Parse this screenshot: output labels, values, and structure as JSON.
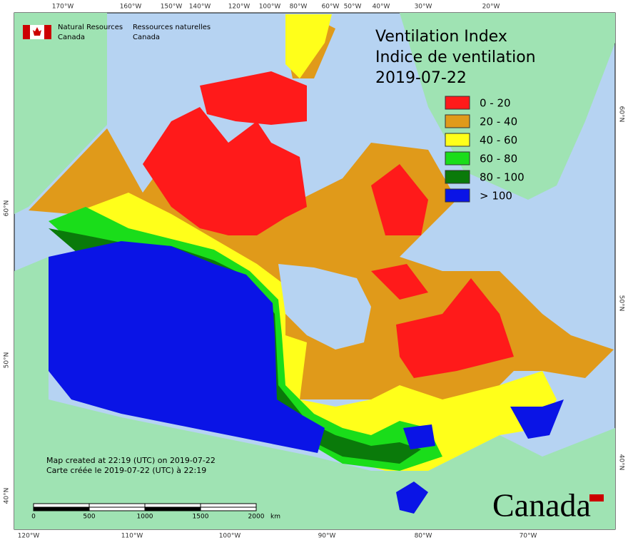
{
  "header": {
    "agency_en": [
      "Natural Resources",
      "Canada"
    ],
    "agency_fr": [
      "Ressources naturelles",
      "Canada"
    ]
  },
  "title": [
    "Ventilation Index",
    "Indice de ventilation",
    "2019-07-22"
  ],
  "legend": [
    {
      "label": "0 - 20",
      "color": "#ff1a1a"
    },
    {
      "label": "20 - 40",
      "color": "#e09a1a"
    },
    {
      "label": "40 - 60",
      "color": "#ffff1a"
    },
    {
      "label": "60 - 80",
      "color": "#1add1a"
    },
    {
      "label": "80 - 100",
      "color": "#0a7a0a"
    },
    {
      "label": "> 100",
      "color": "#0a14e6"
    }
  ],
  "graticule": {
    "top": [
      "170°W",
      "160°W",
      "150°W",
      "140°W",
      "120°W",
      "100°W",
      "80°W",
      "60°W",
      "50°W",
      "40°W",
      "30°W",
      "20°W"
    ],
    "bottom": [
      "120°W",
      "110°W",
      "100°W",
      "90°W",
      "80°W",
      "70°W"
    ],
    "left": [
      "60°N",
      "50°N",
      "40°N"
    ],
    "right": [
      "60°N",
      "50°N",
      "40°N"
    ]
  },
  "notes": [
    "Map created at 22:19 (UTC) on 2019-07-22",
    "Carte créée le 2019-07-22 (UTC) à 22:19"
  ],
  "scale_bar": {
    "ticks": [
      0,
      500,
      1000,
      1500,
      2000
    ],
    "unit": "km"
  },
  "wordmark": "Canada"
}
